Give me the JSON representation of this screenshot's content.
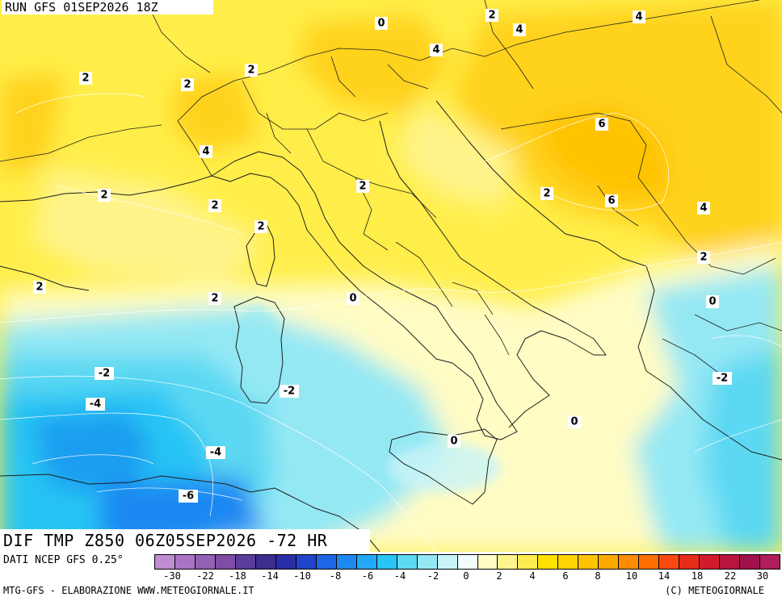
{
  "header": {
    "run": "RUN GFS 01SEP2026 18Z"
  },
  "panel": {
    "title": "DIF TMP Z850 06Z05SEP2026 -72 HR"
  },
  "source": "DATI NCEP GFS 0.25°",
  "footer": {
    "left": "MTG-GFS - ELABORAZIONE WWW.METEOGIORNALE.IT",
    "right": "(C) METEOGIORNALE"
  },
  "colorbar": {
    "colors": [
      "#c08cd2",
      "#a974c4",
      "#9460b4",
      "#7e4ca4",
      "#5a3c9a",
      "#3c2e8e",
      "#2a2ea6",
      "#2244c8",
      "#1e66e6",
      "#1e88f2",
      "#22a8f6",
      "#28c4f4",
      "#5cd8f2",
      "#94e8f4",
      "#c8f4f8",
      "#f2fcfc",
      "#fffcc4",
      "#fff48c",
      "#ffec50",
      "#ffe000",
      "#ffd400",
      "#ffc200",
      "#ffa800",
      "#ff8c00",
      "#ff6e00",
      "#f84a10",
      "#e82c1c",
      "#d21c2c",
      "#b81440",
      "#a0104a",
      "#b01c5c"
    ],
    "tick_labels": [
      "-30",
      "-22",
      "-18",
      "-14",
      "-10",
      "-8",
      "-6",
      "-4",
      "-2",
      "0",
      "2",
      "4",
      "6",
      "8",
      "10",
      "14",
      "18",
      "22",
      "30"
    ]
  },
  "contour_labels": [
    "0",
    "2",
    "4",
    "4",
    "2",
    "2",
    "2",
    "4",
    "6",
    "2",
    "6",
    "2",
    "2",
    "2",
    "4",
    "4",
    "2",
    "2",
    "2",
    "0",
    "0",
    "2",
    "-2",
    "-2",
    "-4",
    "0",
    "0",
    "-2",
    "-4",
    "-6"
  ],
  "map": {
    "base_colors": {
      "sea_cold": "#7fe8f2",
      "sea_cyan": "#35d4ef",
      "cold_blue": "#1fb6ec",
      "pale": "#fff9b0",
      "yellow": "#ffee4a",
      "gold": "#ffd21a"
    },
    "border_color": "#1e1e1e"
  }
}
